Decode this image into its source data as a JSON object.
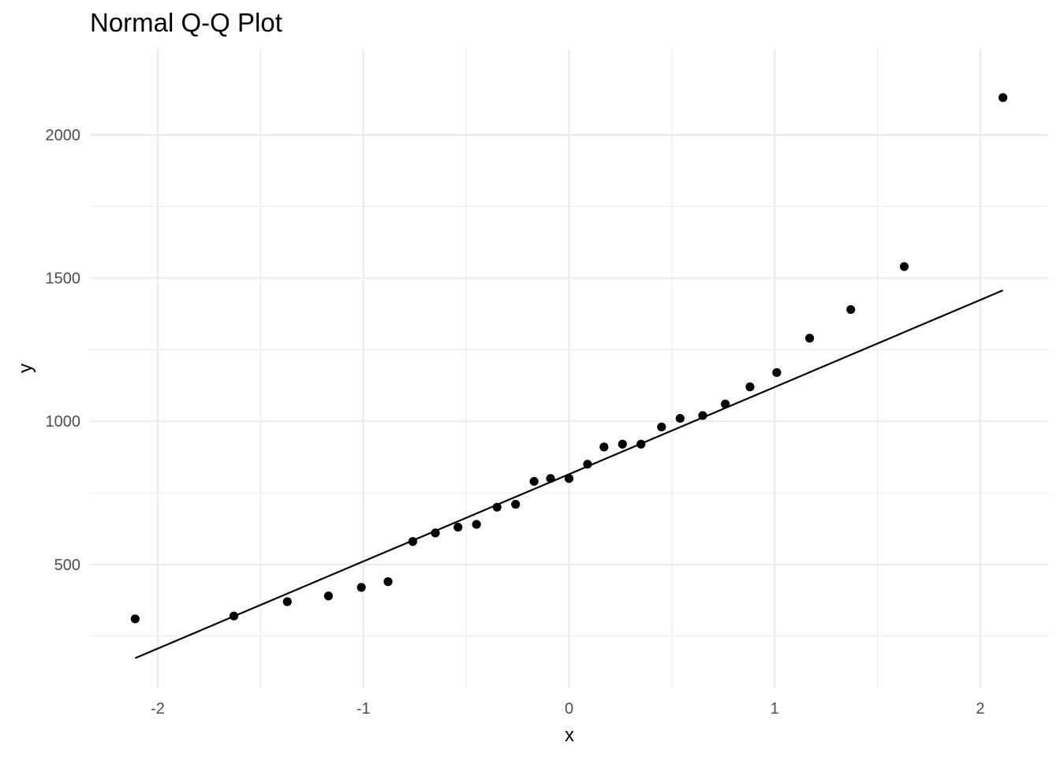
{
  "chart_data": {
    "type": "scatter",
    "title": "Normal Q-Q Plot",
    "xlabel": "x",
    "ylabel": "y",
    "xlim": [
      -2.33,
      2.33
    ],
    "ylim": [
      70,
      2300
    ],
    "grid": true,
    "x_ticks": [
      {
        "value": -2,
        "label": "-2"
      },
      {
        "value": -1,
        "label": "-1"
      },
      {
        "value": 0,
        "label": "0"
      },
      {
        "value": 1,
        "label": "1"
      },
      {
        "value": 2,
        "label": "2"
      }
    ],
    "x_minor_ticks": [
      -1.5,
      -0.5,
      0.5,
      1.5
    ],
    "y_ticks": [
      {
        "value": 500,
        "label": "500"
      },
      {
        "value": 1000,
        "label": "1000"
      },
      {
        "value": 1500,
        "label": "1500"
      },
      {
        "value": 2000,
        "label": "2000"
      }
    ],
    "y_minor_ticks": [
      250,
      750,
      1250,
      1750
    ],
    "points": [
      {
        "x": -2.11,
        "y": 310
      },
      {
        "x": -1.63,
        "y": 320
      },
      {
        "x": -1.37,
        "y": 370
      },
      {
        "x": -1.17,
        "y": 390
      },
      {
        "x": -1.01,
        "y": 420
      },
      {
        "x": -0.88,
        "y": 440
      },
      {
        "x": -0.76,
        "y": 580
      },
      {
        "x": -0.65,
        "y": 610
      },
      {
        "x": -0.54,
        "y": 630
      },
      {
        "x": -0.45,
        "y": 640
      },
      {
        "x": -0.35,
        "y": 700
      },
      {
        "x": -0.26,
        "y": 710
      },
      {
        "x": -0.17,
        "y": 790
      },
      {
        "x": -0.09,
        "y": 800
      },
      {
        "x": 0.0,
        "y": 800
      },
      {
        "x": 0.09,
        "y": 850
      },
      {
        "x": 0.17,
        "y": 910
      },
      {
        "x": 0.26,
        "y": 920
      },
      {
        "x": 0.35,
        "y": 920
      },
      {
        "x": 0.45,
        "y": 980
      },
      {
        "x": 0.54,
        "y": 1010
      },
      {
        "x": 0.65,
        "y": 1020
      },
      {
        "x": 0.76,
        "y": 1060
      },
      {
        "x": 0.88,
        "y": 1120
      },
      {
        "x": 1.01,
        "y": 1170
      },
      {
        "x": 1.17,
        "y": 1290
      },
      {
        "x": 1.37,
        "y": 1390
      },
      {
        "x": 1.63,
        "y": 1540
      },
      {
        "x": 2.11,
        "y": 2130
      }
    ],
    "reference_line": {
      "x": [
        -2.11,
        2.11
      ],
      "y": [
        173,
        1457
      ]
    },
    "point_color": "#000000",
    "line_color": "#000000",
    "grid_color": "#ebebeb"
  }
}
